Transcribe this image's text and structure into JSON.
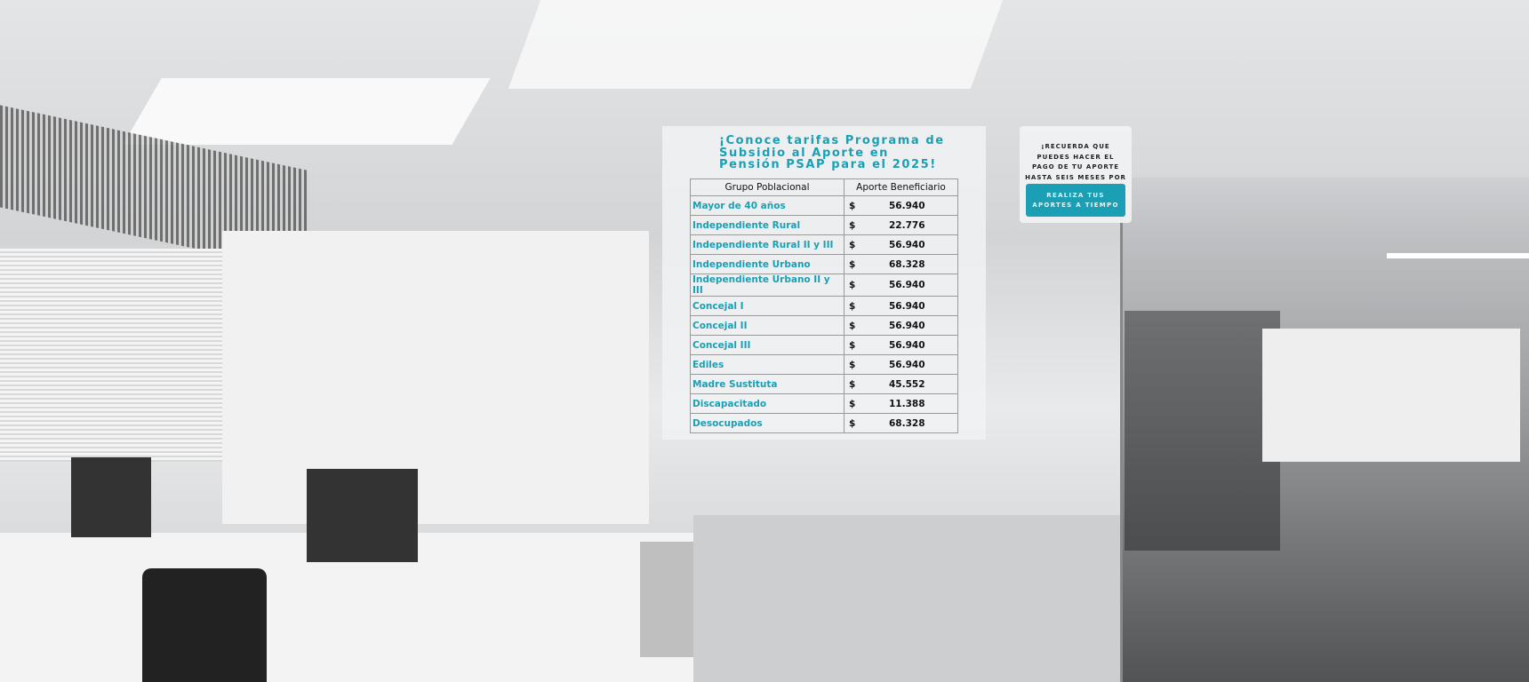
{
  "panel": {
    "title": "¡Conoce tarifas Programa de Subsidio al Aporte en Pensión PSAP para el 2025!",
    "table": {
      "headers": [
        "Grupo Poblacional",
        "Aporte Beneficiario"
      ],
      "currency": "$",
      "rows": [
        {
          "group": "Mayor de 40 años",
          "value": "56.940"
        },
        {
          "group": "Independiente Rural",
          "value": "22.776"
        },
        {
          "group": "Independiente Rural II y III",
          "value": "56.940"
        },
        {
          "group": "Independiente Urbano",
          "value": "68.328"
        },
        {
          "group": "Independiente Urbano II y III",
          "value": "56.940"
        },
        {
          "group": "Concejal I",
          "value": "56.940"
        },
        {
          "group": "Concejal II",
          "value": "56.940"
        },
        {
          "group": "Concejal III",
          "value": "56.940"
        },
        {
          "group": "Ediles",
          "value": "56.940"
        },
        {
          "group": "Madre  Sustituta",
          "value": "45.552"
        },
        {
          "group": "Discapacitado",
          "value": "11.388"
        },
        {
          "group": "Desocupados",
          "value": "68.328"
        }
      ]
    }
  },
  "reminder": {
    "text": "¡RECUERDA QUE PUEDES HACER EL PAGO DE TU APORTE HASTA SEIS MESES POR ANTICIPADO!",
    "button_label": "REALIZA TUS APORTES A TIEMPO"
  },
  "colors": {
    "accent": "#1a9fb4"
  }
}
